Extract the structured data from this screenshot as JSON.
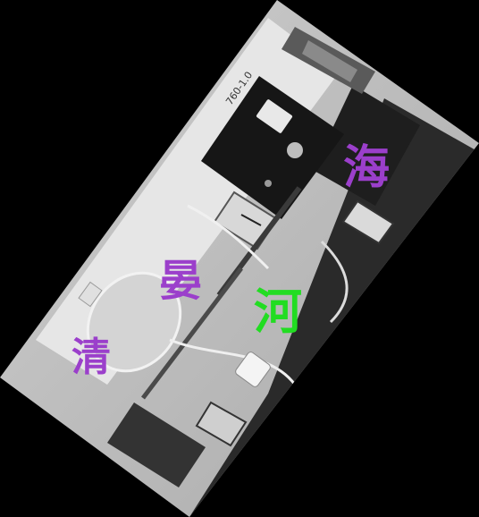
{
  "photo": {
    "subject": "laboratory-apparatus-photo",
    "label_on_meter": "760-1.0"
  },
  "overlay": {
    "chars": [
      "海",
      "晏",
      "河",
      "清"
    ],
    "colors": {
      "purple": "#9b3fcb",
      "green": "#22dd22"
    }
  }
}
